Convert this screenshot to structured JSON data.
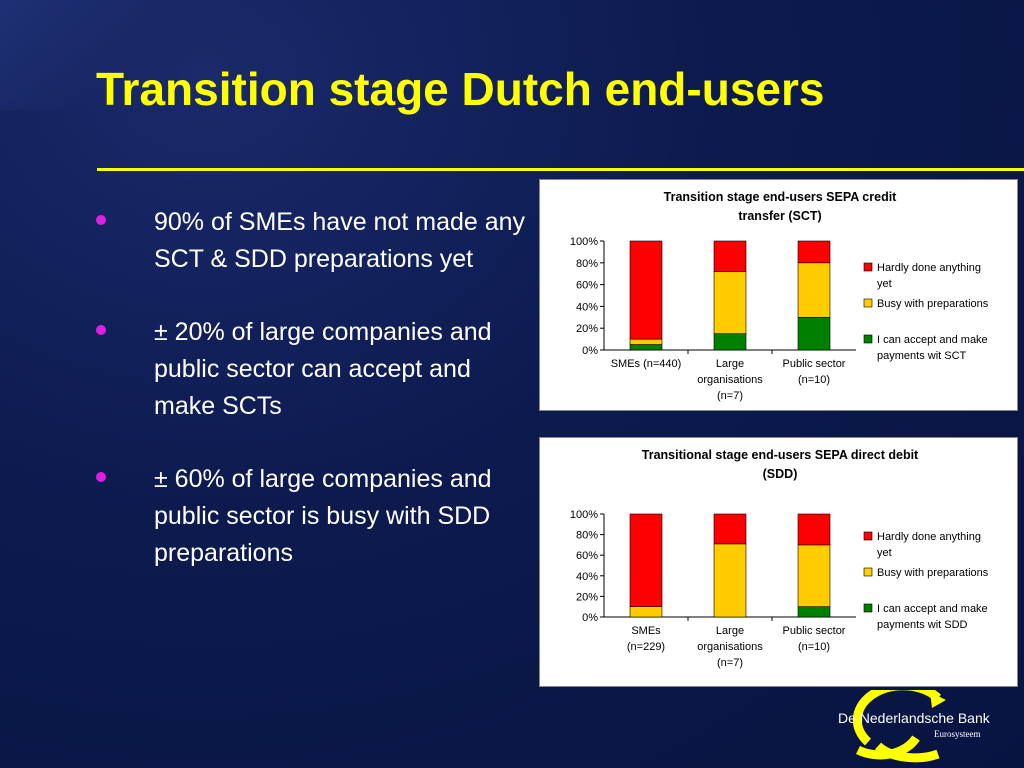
{
  "slide": {
    "title": "Transition stage Dutch end-users",
    "bullets": [
      "90% of SMEs have not made any SCT & SDD preparations yet",
      "± 20% of large companies and public sector can accept and make SCTs",
      "± 60% of large companies and public sector is busy with SDD preparations"
    ],
    "colors": {
      "background": "#0c1a4e",
      "title": "#ffff00",
      "bullet_dot": "#e020e0"
    }
  },
  "logo": {
    "name": "De Nederlandsche Bank",
    "subtitle": "Eurosysteem"
  },
  "chart_data": [
    {
      "type": "bar",
      "stacked": true,
      "title_lines": [
        "Transition stage end-users SEPA credit",
        "transfer (SCT)"
      ],
      "categories": [
        [
          "SMEs (n=440)"
        ],
        [
          "Large",
          "organisations",
          "(n=7)"
        ],
        [
          "Public sector",
          "(n=10)"
        ]
      ],
      "yticks": [
        "0%",
        "20%",
        "40%",
        "60%",
        "80%",
        "100%"
      ],
      "ylim": [
        0,
        100
      ],
      "legend_position": "right",
      "series": [
        {
          "name_lines": [
            "I can accept and make",
            "payments wit SCT"
          ],
          "color": "#008000",
          "values": [
            5,
            15,
            30
          ]
        },
        {
          "name_lines": [
            "Busy with preparations"
          ],
          "color": "#ffcc00",
          "values": [
            5,
            57,
            50
          ]
        },
        {
          "name_lines": [
            "Hardly done anything",
            "yet"
          ],
          "color": "#ff0000",
          "values": [
            90,
            28,
            20
          ]
        }
      ]
    },
    {
      "type": "bar",
      "stacked": true,
      "title_lines": [
        "Transitional stage end-users SEPA direct debit",
        "(SDD)"
      ],
      "categories": [
        [
          "SMEs",
          "(n=229)"
        ],
        [
          "Large",
          "organisations",
          "(n=7)"
        ],
        [
          "Public sector",
          "(n=10)"
        ]
      ],
      "yticks": [
        "0%",
        "20%",
        "40%",
        "60%",
        "80%",
        "100%"
      ],
      "ylim": [
        0,
        100
      ],
      "legend_position": "right",
      "series": [
        {
          "name_lines": [
            "I can accept and make",
            "payments wit SDD"
          ],
          "color": "#008000",
          "values": [
            0,
            0,
            10
          ]
        },
        {
          "name_lines": [
            "Busy with preparations"
          ],
          "color": "#ffcc00",
          "values": [
            10,
            71,
            60
          ]
        },
        {
          "name_lines": [
            "Hardly done anything",
            "yet"
          ],
          "color": "#ff0000",
          "values": [
            90,
            29,
            30
          ]
        }
      ]
    }
  ]
}
